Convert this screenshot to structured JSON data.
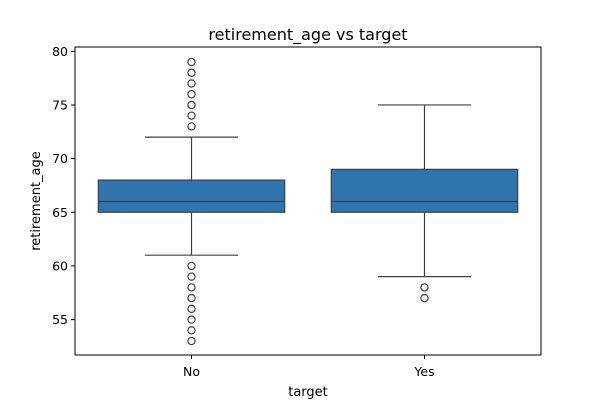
{
  "chart_data": {
    "type": "box",
    "title": "retirement_age vs target",
    "xlabel": "target",
    "ylabel": "retirement_age",
    "ylim": [
      51.7,
      80.4
    ],
    "yticks": [
      55,
      60,
      65,
      70,
      75,
      80
    ],
    "categories": [
      "No",
      "Yes"
    ],
    "box_color": "#2e75b0",
    "line_color": "#404040",
    "boxes": [
      {
        "category": "No",
        "whisker_low": 61,
        "q1": 65,
        "median": 66,
        "q3": 68,
        "whisker_high": 72,
        "outliers": [
          53,
          54,
          55,
          56,
          57,
          58,
          59,
          60,
          73,
          74,
          75,
          76,
          77,
          78,
          79
        ]
      },
      {
        "category": "Yes",
        "whisker_low": 59,
        "q1": 65,
        "median": 66,
        "q3": 69,
        "whisker_high": 75,
        "outliers": [
          57,
          58
        ]
      }
    ]
  }
}
